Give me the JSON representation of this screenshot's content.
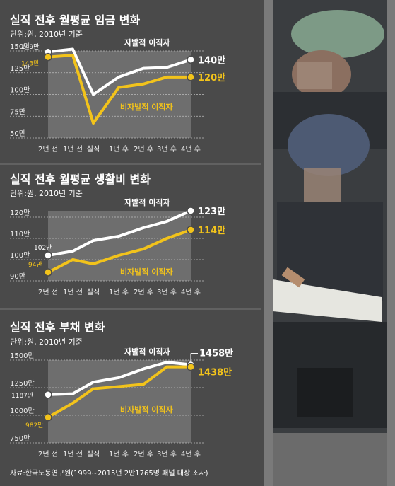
{
  "colors": {
    "background": "#4a4a4a",
    "shade": "#6e6e6e",
    "voluntary": "#ffffff",
    "involuntary": "#f2c31b",
    "gridline": "#bdbdbd"
  },
  "photo": {
    "icon": "photo-of-worker-writing-form"
  },
  "source": "자료:한국노동연구원(1999~2015년 2만1765명 패널 대상 조사)",
  "chart_data": [
    {
      "type": "line",
      "title": "실직 전후 월평균 임금 변화",
      "unit": "단위:원, 2010년 기준",
      "categories": [
        "2년 전",
        "1년 전",
        "실직",
        "1년 후",
        "2년 후",
        "3년 후",
        "4년 후"
      ],
      "yticks": [
        "150만",
        "125만",
        "100만",
        "75만",
        "50만"
      ],
      "ytick_values": [
        150,
        125,
        100,
        75,
        50
      ],
      "ylim": [
        50,
        150
      ],
      "series": [
        {
          "name": "자발적 이직자",
          "color": "#ffffff",
          "values": [
            149,
            152,
            100,
            120,
            130,
            131,
            140
          ],
          "start_label": "149만",
          "end_label": "140만"
        },
        {
          "name": "비자발적 이직자",
          "color": "#f2c31b",
          "values": [
            143,
            145,
            67,
            108,
            112,
            120,
            120
          ],
          "start_label": "143만",
          "end_label": "120만"
        }
      ]
    },
    {
      "type": "line",
      "title": "실직 전후 월평균 생활비 변화",
      "unit": "단위:원, 2010년 기준",
      "categories": [
        "2년 전",
        "1년 전",
        "실직",
        "1년 후",
        "2년 후",
        "3년 후",
        "4년 후"
      ],
      "yticks": [
        "120만",
        "110만",
        "100만",
        "90만"
      ],
      "ytick_values": [
        120,
        110,
        100,
        90
      ],
      "ylim": [
        90,
        123
      ],
      "series": [
        {
          "name": "자발적 이직자",
          "color": "#ffffff",
          "values": [
            102,
            104,
            109,
            111,
            115,
            118,
            123
          ],
          "start_label": "102만",
          "end_label": "123만"
        },
        {
          "name": "비자발적 이직자",
          "color": "#f2c31b",
          "values": [
            94,
            100,
            98,
            102,
            105,
            110,
            114
          ],
          "start_label": "94만",
          "end_label": "114만"
        }
      ]
    },
    {
      "type": "line",
      "title": "실직 전후 부채 변화",
      "unit": "단위:원, 2010년 기준",
      "categories": [
        "2년 전",
        "1년 전",
        "실직",
        "1년 후",
        "2년 후",
        "3년 후",
        "4년 후"
      ],
      "yticks": [
        "1500만",
        "1250만",
        "1000만",
        "750만"
      ],
      "ytick_values": [
        1500,
        1250,
        1000,
        750
      ],
      "ylim": [
        750,
        1500
      ],
      "series": [
        {
          "name": "자발적 이직자",
          "color": "#ffffff",
          "values": [
            1187,
            1195,
            1300,
            1340,
            1420,
            1480,
            1458
          ],
          "start_label": "1187만",
          "end_label": "1458만"
        },
        {
          "name": "비자발적 이직자",
          "color": "#f2c31b",
          "values": [
            982,
            1110,
            1240,
            1260,
            1280,
            1438,
            1438
          ],
          "start_label": "982만",
          "end_label": "1438만"
        }
      ]
    }
  ]
}
